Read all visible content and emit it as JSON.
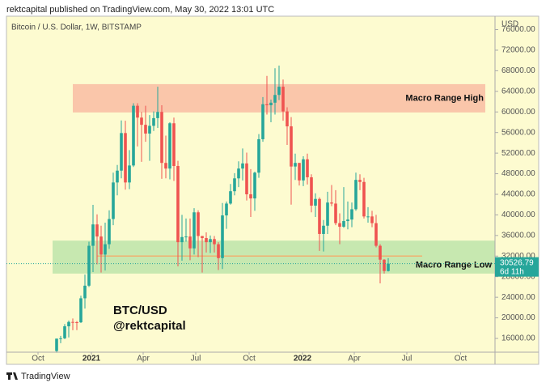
{
  "header": {
    "publisher": "rektcapital published on TradingView.com, May 30, 2022 13:01 UTC",
    "brand": "TradingView"
  },
  "chart_data": {
    "type": "candlestick",
    "title": "Bitcoin / U.S. Dollar, 1W, BITSTAMP",
    "y_axis_label": "USD",
    "watermark": [
      "BTC/USD",
      "@rektcapital"
    ],
    "up_color": "#26a69a",
    "down_color": "#ef5350",
    "categories": [
      null,
      null,
      null,
      null,
      null,
      null,
      null,
      null,
      null,
      null,
      null,
      null,
      null,
      null,
      null,
      null,
      null,
      null,
      null,
      null,
      null,
      null,
      null,
      null,
      null,
      null,
      null,
      null,
      null,
      null,
      null,
      null,
      null,
      null,
      null,
      null,
      null,
      null,
      null,
      null,
      null,
      null,
      null,
      null,
      null,
      null,
      null,
      null,
      null,
      null,
      null,
      null,
      null,
      null,
      null,
      null,
      null,
      null,
      null,
      null,
      null,
      null,
      null,
      null,
      null,
      null,
      null,
      null,
      null,
      null,
      null,
      null,
      null,
      null,
      null,
      null,
      null,
      null,
      null,
      null,
      null,
      null,
      null
    ],
    "open": [
      13560,
      15960,
      16030,
      18360,
      19200,
      19150,
      19140,
      23800,
      26250,
      34000,
      38150,
      35800,
      32300,
      34300,
      39200,
      46300,
      48600,
      55900,
      46300,
      49600,
      61200,
      58900,
      57500,
      55800,
      57300,
      58800,
      60000,
      50100,
      49000,
      57800,
      49500,
      34700,
      35700,
      35800,
      33500,
      40500,
      35900,
      35500,
      34700,
      35300,
      34300,
      31600,
      39900,
      42200,
      44600,
      47100,
      49000,
      50000,
      44000,
      43200,
      48200,
      54700,
      61500,
      61300,
      61800,
      63300,
      64900,
      60100,
      57200,
      49400,
      50100,
      46700,
      50800,
      47300,
      41800,
      43100,
      36300,
      37900,
      42400,
      42200,
      38400,
      37700,
      38800,
      39100,
      41100,
      46800,
      46400,
      39700,
      39700,
      38400,
      34000,
      31300,
      29100
    ],
    "high": [
      15960,
      16500,
      18800,
      19480,
      19880,
      19380,
      24300,
      28400,
      34800,
      41950,
      40100,
      37900,
      38500,
      40900,
      48200,
      49700,
      58350,
      58300,
      52600,
      61700,
      61700,
      60000,
      61200,
      59400,
      60100,
      64900,
      61300,
      55400,
      58000,
      58900,
      50500,
      40000,
      39300,
      39300,
      41300,
      40900,
      35900,
      36600,
      36000,
      35900,
      34700,
      42300,
      42600,
      46000,
      48100,
      50400,
      52900,
      52100,
      48900,
      48400,
      55700,
      62900,
      67000,
      62400,
      68500,
      69000,
      66300,
      60900,
      59000,
      51900,
      50100,
      51400,
      51900,
      47900,
      44200,
      43400,
      39000,
      44500,
      45800,
      44800,
      40300,
      45400,
      42600,
      42400,
      48200,
      47900,
      47200,
      41500,
      40800,
      40000,
      34300,
      31400,
      31600
    ],
    "low": [
      13230,
      15080,
      15870,
      16200,
      17600,
      17620,
      19000,
      21800,
      26000,
      28900,
      30400,
      28800,
      29200,
      33400,
      38000,
      43800,
      47100,
      44900,
      45000,
      49300,
      53300,
      50300,
      54200,
      50500,
      56300,
      56900,
      47000,
      47100,
      46900,
      46600,
      30000,
      31100,
      34800,
      31200,
      32300,
      31800,
      28800,
      32700,
      32600,
      32700,
      29300,
      29500,
      37300,
      42000,
      43800,
      45400,
      46700,
      42800,
      39600,
      40800,
      47200,
      54200,
      59500,
      58000,
      59500,
      62300,
      58300,
      53600,
      42000,
      46800,
      45700,
      45600,
      45900,
      40500,
      39600,
      33000,
      32900,
      36300,
      41700,
      38000,
      34300,
      37500,
      37200,
      37600,
      40800,
      44800,
      39300,
      38500,
      37600,
      33700,
      26700,
      28600,
      29000
    ],
    "close": [
      15960,
      16030,
      18360,
      19200,
      19150,
      19140,
      23800,
      26250,
      34000,
      38150,
      35800,
      32300,
      34300,
      39200,
      46300,
      48600,
      55900,
      46300,
      49600,
      61200,
      58900,
      57500,
      55800,
      57300,
      58800,
      60000,
      50100,
      49000,
      57800,
      49500,
      34700,
      35700,
      35800,
      33500,
      40500,
      35900,
      35500,
      34700,
      35300,
      34300,
      31600,
      39900,
      42200,
      44600,
      47100,
      49000,
      50000,
      44000,
      43200,
      48200,
      54700,
      61500,
      61300,
      61800,
      63300,
      64900,
      60100,
      57200,
      49400,
      50100,
      46700,
      50800,
      47300,
      41800,
      43100,
      36300,
      37900,
      42400,
      42200,
      38400,
      37700,
      38800,
      39100,
      41100,
      46800,
      46400,
      39700,
      39700,
      38400,
      34000,
      31300,
      29100,
      30526.79
    ],
    "last_label": "30526.79",
    "countdown": "6d 11h",
    "ylim": [
      13330,
      78600
    ],
    "yticks": [
      {
        "value": 16000,
        "label": "16000.00"
      },
      {
        "value": 20000,
        "label": "20000.00"
      },
      {
        "value": 24000,
        "label": "24000.00"
      },
      {
        "value": 28000,
        "label": "28000.00"
      },
      {
        "value": 32000,
        "label": "32000.00"
      },
      {
        "value": 36000,
        "label": "36000.00"
      },
      {
        "value": 40000,
        "label": "40000.00"
      },
      {
        "value": 44000,
        "label": "44000.00"
      },
      {
        "value": 48000,
        "label": "48000.00"
      },
      {
        "value": 52000,
        "label": "52000.00"
      },
      {
        "value": 56000,
        "label": "56000.00"
      },
      {
        "value": 60000,
        "label": "60000.00"
      },
      {
        "value": 64000,
        "label": "64000.00"
      },
      {
        "value": 68000,
        "label": "68000.00"
      },
      {
        "value": 72000,
        "label": "72000.00"
      },
      {
        "value": 76000,
        "label": "76000.00"
      }
    ],
    "xlim": [
      -12.4,
      108.4
    ],
    "xticks": [
      {
        "value": -4.6,
        "label": "Oct"
      },
      {
        "value": 8.6,
        "label": "2021"
      },
      {
        "value": 21.4,
        "label": "Apr"
      },
      {
        "value": 34.4,
        "label": "Jul"
      },
      {
        "value": 47.6,
        "label": "Oct"
      },
      {
        "value": 60.8,
        "label": "2022"
      },
      {
        "value": 73.6,
        "label": "Apr"
      },
      {
        "value": 86.6,
        "label": "Jul"
      },
      {
        "value": 99.9,
        "label": "Oct"
      }
    ],
    "zones": [
      {
        "label": "Macro Range High",
        "low": 59900,
        "high": 65400,
        "color": "#f9b9a0"
      },
      {
        "label": "Macro Range Low",
        "low": 28600,
        "high": 35000,
        "color": "#b9e3a8"
      }
    ],
    "level": {
      "value": 32000,
      "color": "#f0b070"
    }
  }
}
